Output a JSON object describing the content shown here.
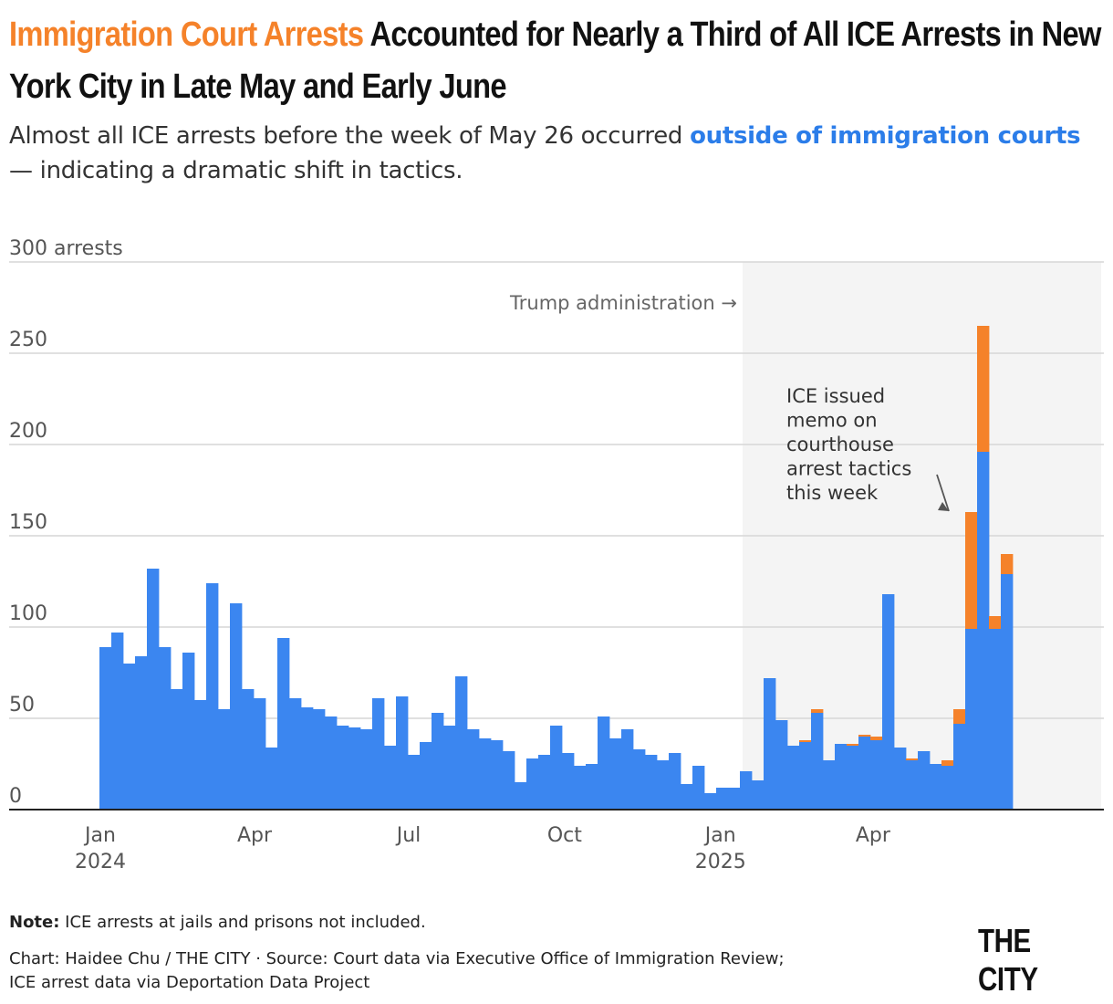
{
  "header": {
    "title_highlight": "Immigration Court Arrests",
    "title_rest": " Accounted for Nearly a Third of All ICE Arrests in New York City in Late May and Early June",
    "subtitle_before": "Almost all ICE arrests before the week of May 26 occurred ",
    "subtitle_highlight": "outside of immigration courts",
    "subtitle_after": " — indicating a dramatic shift in tactics."
  },
  "colors": {
    "court": "#f5822a",
    "outside": "#3b86f0",
    "shade": "#f4f4f4",
    "grid": "#d6d6d6"
  },
  "chart_data": {
    "type": "bar",
    "stacked": true,
    "y_unit_label": "300 arrests",
    "ylim": [
      0,
      300
    ],
    "y_ticks": [
      0,
      50,
      100,
      150,
      200,
      250,
      300
    ],
    "x_tick_labels": [
      {
        "label": "Jan",
        "sub": "2024",
        "week": "2024-01-01"
      },
      {
        "label": "Apr",
        "sub": "",
        "week": "2024-04-01"
      },
      {
        "label": "Jul",
        "sub": "",
        "week": "2024-07-01"
      },
      {
        "label": "Oct",
        "sub": "",
        "week": "2024-10-01"
      },
      {
        "label": "Jan",
        "sub": "2025",
        "week": "2025-01-01"
      },
      {
        "label": "Apr",
        "sub": "",
        "week": "2025-04-01"
      }
    ],
    "weeks": [
      "2024-01-01",
      "2024-01-08",
      "2024-01-15",
      "2024-01-22",
      "2024-01-29",
      "2024-02-05",
      "2024-02-12",
      "2024-02-19",
      "2024-02-26",
      "2024-03-04",
      "2024-03-11",
      "2024-03-18",
      "2024-03-25",
      "2024-04-01",
      "2024-04-08",
      "2024-04-15",
      "2024-04-22",
      "2024-04-29",
      "2024-05-06",
      "2024-05-13",
      "2024-05-20",
      "2024-05-27",
      "2024-06-03",
      "2024-06-10",
      "2024-06-17",
      "2024-06-24",
      "2024-07-01",
      "2024-07-08",
      "2024-07-15",
      "2024-07-22",
      "2024-07-29",
      "2024-08-05",
      "2024-08-12",
      "2024-08-19",
      "2024-08-26",
      "2024-09-02",
      "2024-09-09",
      "2024-09-16",
      "2024-09-23",
      "2024-09-30",
      "2024-10-07",
      "2024-10-14",
      "2024-10-21",
      "2024-10-28",
      "2024-11-04",
      "2024-11-11",
      "2024-11-18",
      "2024-11-25",
      "2024-12-02",
      "2024-12-09",
      "2024-12-16",
      "2024-12-23",
      "2024-12-30",
      "2025-01-06",
      "2025-01-13",
      "2025-01-20",
      "2025-01-27",
      "2025-02-03",
      "2025-02-10",
      "2025-02-17",
      "2025-02-24",
      "2025-03-03",
      "2025-03-10",
      "2025-03-17",
      "2025-03-24",
      "2025-03-31",
      "2025-04-07",
      "2025-04-14",
      "2025-04-21",
      "2025-04-28",
      "2025-05-05",
      "2025-05-12",
      "2025-05-19",
      "2025-05-26",
      "2025-06-02",
      "2025-06-09",
      "2025-06-16"
    ],
    "series": [
      {
        "key": "outside",
        "values": [
          89,
          97,
          80,
          84,
          132,
          89,
          66,
          86,
          60,
          124,
          55,
          113,
          66,
          61,
          34,
          94,
          61,
          56,
          55,
          51,
          46,
          45,
          44,
          61,
          35,
          62,
          30,
          37,
          53,
          46,
          73,
          44,
          39,
          38,
          32,
          15,
          28,
          30,
          46,
          31,
          24,
          25,
          51,
          39,
          44,
          33,
          30,
          27,
          31,
          14,
          24,
          9,
          12,
          12,
          21,
          16,
          72,
          49,
          35,
          37,
          53,
          27,
          36,
          35,
          40,
          38,
          118,
          34,
          27,
          32,
          25,
          24,
          47,
          99,
          196,
          99,
          129
        ],
        "color": "#3b86f0"
      },
      {
        "key": "court",
        "values": [
          0,
          0,
          0,
          0,
          0,
          0,
          0,
          0,
          0,
          0,
          0,
          0,
          0,
          0,
          0,
          0,
          0,
          0,
          0,
          0,
          0,
          0,
          0,
          0,
          0,
          0,
          0,
          0,
          0,
          0,
          0,
          0,
          0,
          0,
          0,
          0,
          0,
          0,
          0,
          0,
          0,
          0,
          0,
          0,
          0,
          0,
          0,
          0,
          0,
          0,
          0,
          0,
          0,
          0,
          0,
          0,
          0,
          0,
          0,
          1,
          2,
          0,
          0,
          1,
          1,
          2,
          0,
          0,
          1,
          0,
          0,
          3,
          8,
          64,
          69,
          7,
          11
        ],
        "color": "#f5822a"
      }
    ],
    "shaded_from_week": "2025-01-20",
    "annotations": [
      {
        "text": "Trump administration →",
        "week": "2025-01-20"
      },
      {
        "lines": [
          "ICE issued",
          "memo on",
          "courthouse",
          "arrest tactics",
          "this week"
        ],
        "week": "2025-05-26"
      }
    ],
    "grid": true
  },
  "footer": {
    "note_label": "Note:",
    "note_text": " ICE arrests at jails and prisons not included.",
    "credit_line1": "Chart: Haidee Chu / THE CITY · Source: Court data via Executive Office of Immigration Review;",
    "credit_line2": "ICE arrest data via Deportation Data Project",
    "logo": "THE CITY"
  }
}
